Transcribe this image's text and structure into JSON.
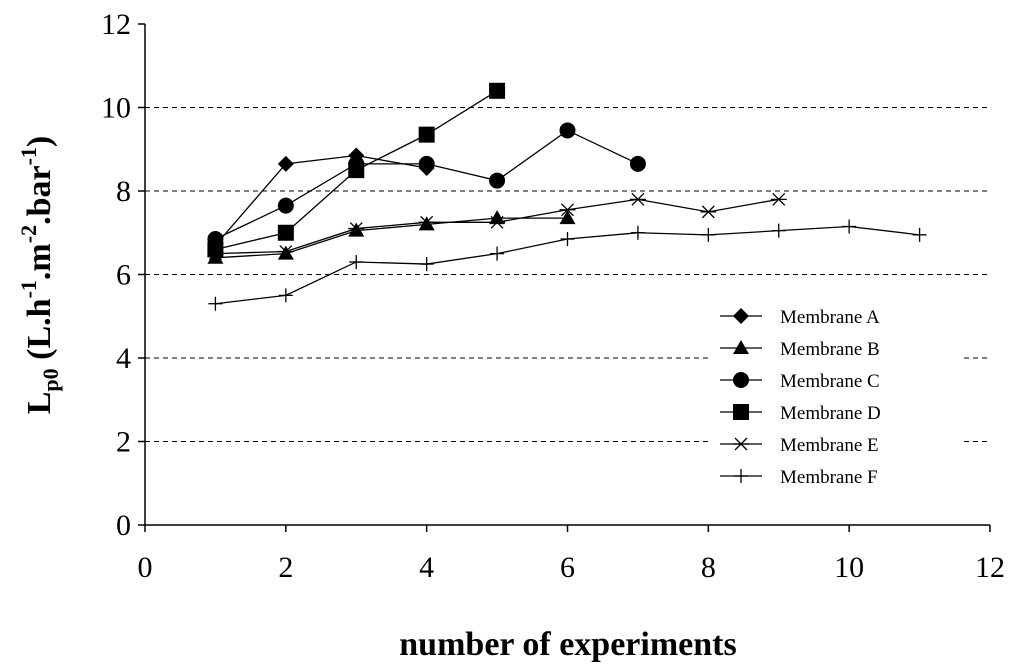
{
  "chart_data": {
    "type": "line",
    "title": "",
    "xlabel": "number of experiments",
    "ylabel_main": "L",
    "ylabel_sub": "p0",
    "ylabel_rest_parts": [
      {
        "t": " (L.h",
        "sup": false
      },
      {
        "t": "-1",
        "sup": true
      },
      {
        "t": ".m",
        "sup": false
      },
      {
        "t": "-2",
        "sup": true
      },
      {
        "t": ".bar",
        "sup": false
      },
      {
        "t": "-1",
        "sup": true
      },
      {
        "t": ")",
        "sup": false
      }
    ],
    "xlim": [
      0,
      12
    ],
    "ylim": [
      0,
      12
    ],
    "xticks": [
      0,
      2,
      4,
      6,
      8,
      10,
      12
    ],
    "yticks": [
      0,
      2,
      4,
      6,
      8,
      10,
      12
    ],
    "grid": "horizontal-dashed",
    "legend_position": "right",
    "series": [
      {
        "name": "Membrane A",
        "marker": "diamond",
        "x": [
          1,
          2,
          3,
          4
        ],
        "y": [
          6.7,
          8.65,
          8.85,
          8.55
        ]
      },
      {
        "name": "Membrane B",
        "marker": "triangle",
        "x": [
          1,
          2,
          3,
          4,
          5,
          6
        ],
        "y": [
          6.4,
          6.5,
          7.05,
          7.2,
          7.35,
          7.35
        ]
      },
      {
        "name": "Membrane C",
        "marker": "circle",
        "x": [
          1,
          2,
          3,
          4,
          5,
          6,
          7
        ],
        "y": [
          6.85,
          7.65,
          8.65,
          8.65,
          8.25,
          9.45,
          8.65
        ]
      },
      {
        "name": "Membrane D",
        "marker": "square",
        "x": [
          1,
          2,
          3,
          4,
          5
        ],
        "y": [
          6.6,
          7.0,
          8.5,
          9.35,
          10.4
        ]
      },
      {
        "name": "Membrane E",
        "marker": "asterisk",
        "x": [
          1,
          2,
          3,
          4,
          5,
          6,
          7,
          8,
          9
        ],
        "y": [
          6.5,
          6.55,
          7.1,
          7.25,
          7.25,
          7.55,
          7.8,
          7.5,
          7.8
        ]
      },
      {
        "name": "Membrane F",
        "marker": "plus",
        "x": [
          1,
          2,
          3,
          4,
          5,
          6,
          7,
          8,
          9,
          10,
          11
        ],
        "y": [
          5.3,
          5.5,
          6.3,
          6.25,
          6.5,
          6.85,
          7.0,
          6.95,
          7.05,
          7.15,
          6.95
        ]
      }
    ]
  }
}
